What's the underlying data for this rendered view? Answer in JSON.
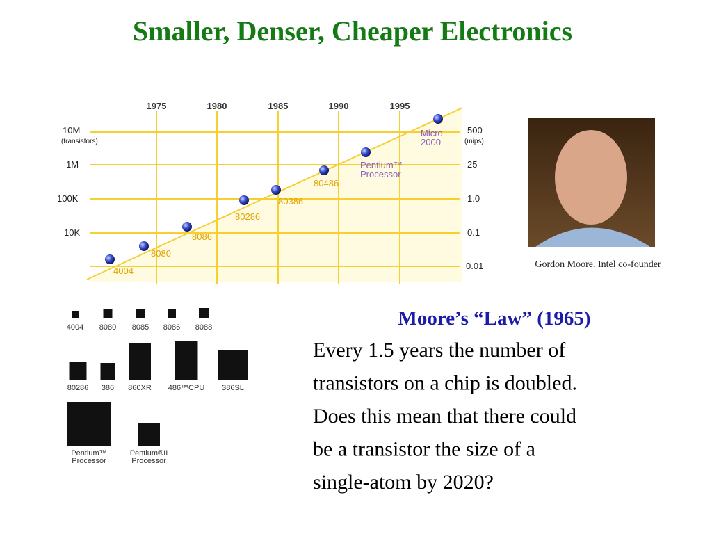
{
  "title": "Smaller, Denser, Cheaper Electronics",
  "diagram": {
    "years": [
      "1975",
      "1980",
      "1985",
      "1990",
      "1995"
    ],
    "left_axis": [
      "10M",
      "(transistors)",
      "1M",
      "100K",
      "10K"
    ],
    "right_axis": [
      "500",
      "(mips)",
      "25",
      "1.0",
      "0.1",
      "0.01"
    ],
    "processors": [
      [
        "4004"
      ],
      [
        "8080"
      ],
      [
        "8086"
      ],
      [
        "80286"
      ],
      [
        "80386"
      ],
      [
        "80486"
      ],
      [
        "Pentium™",
        "Processor"
      ],
      [
        "Micro",
        "2000"
      ]
    ]
  },
  "photo_caption": "Gordon Moore. Intel co-founder",
  "chips": {
    "row1": [
      "4004",
      "8080",
      "8085",
      "8086",
      "8088"
    ],
    "row2": [
      "80286",
      "386",
      "860XR",
      "486™CPU",
      "386SL"
    ],
    "row3": [
      [
        "Pentium™",
        "Processor"
      ],
      [
        "Pentium®II",
        "Processor"
      ]
    ]
  },
  "text": {
    "heading": "Moore’s “Law” (1965)",
    "lines": [
      "Every 1.5 years  the number of",
      "transistors on a chip is doubled.",
      "Does this mean that there could",
      "be a  transistor  the size of a",
      "single-atom by 2020?"
    ]
  }
}
